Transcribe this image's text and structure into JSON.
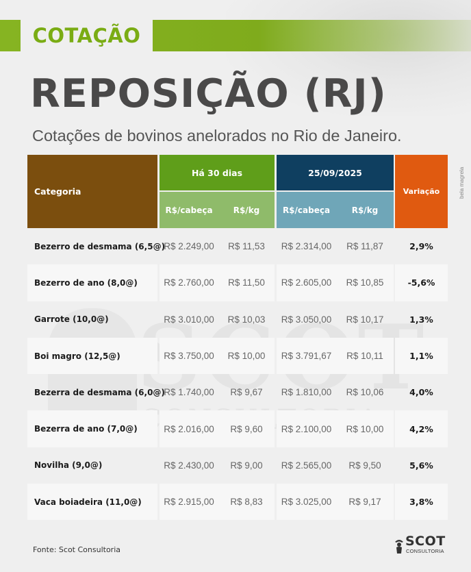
{
  "badge": "COTAÇÃO",
  "title": "REPOSIÇÃO (RJ)",
  "subtitle": "Cotações de bovinos anelorados no Rio de Janeiro.",
  "photo_credit": "bela magrela",
  "table": {
    "header": {
      "category": "Categoria",
      "period1": "Há 30 dias",
      "period2": "25/09/2025",
      "variation": "Variação",
      "sub_head": "R$/cabeça",
      "sub_kg": "R$/kg"
    },
    "rows": [
      {
        "category": "Bezerro de desmama (6,5@)",
        "p1_head": "R$ 2.249,00",
        "p1_kg": "R$ 11,53",
        "p2_head": "R$ 2.314,00",
        "p2_kg": "R$ 11,87",
        "variation": "2,9%"
      },
      {
        "category": "Bezerro de ano (8,0@)",
        "p1_head": "R$ 2.760,00",
        "p1_kg": "R$ 11,50",
        "p2_head": "R$ 2.605,00",
        "p2_kg": "R$ 10,85",
        "variation": "-5,6%"
      },
      {
        "category": "Garrote (10,0@)",
        "p1_head": "R$ 3.010,00",
        "p1_kg": "R$ 10,03",
        "p2_head": "R$ 3.050,00",
        "p2_kg": "R$ 10,17",
        "variation": "1,3%"
      },
      {
        "category": "Boi magro (12,5@)",
        "p1_head": "R$ 3.750,00",
        "p1_kg": "R$ 10,00",
        "p2_head": "R$ 3.791,67",
        "p2_kg": "R$ 10,11",
        "variation": "1,1%"
      },
      {
        "category": "Bezerra de desmama (6,0@)",
        "p1_head": "R$ 1.740,00",
        "p1_kg": "R$ 9,67",
        "p2_head": "R$ 1.810,00",
        "p2_kg": "R$ 10,06",
        "variation": "4,0%"
      },
      {
        "category": "Bezerra de ano (7,0@)",
        "p1_head": "R$ 2.016,00",
        "p1_kg": "R$ 9,60",
        "p2_head": "R$ 2.100,00",
        "p2_kg": "R$ 10,00",
        "variation": "4,2%"
      },
      {
        "category": "Novilha (9,0@)",
        "p1_head": "R$ 2.430,00",
        "p1_kg": "R$ 9,00",
        "p2_head": "R$ 2.565,00",
        "p2_kg": "R$ 9,50",
        "variation": "5,6%"
      },
      {
        "category": "Vaca boiadeira (11,0@)",
        "p1_head": "R$ 2.915,00",
        "p1_kg": "R$ 8,83",
        "p2_head": "R$ 3.025,00",
        "p2_kg": "R$ 9,17",
        "variation": "3,8%"
      }
    ]
  },
  "source": "Fonte: Scot Consultoria",
  "logo": {
    "brand": "SCOT",
    "sub": "CONSULTORIA"
  },
  "watermark": {
    "text": "SCOT",
    "sub": "CONSULTORIA"
  },
  "colors": {
    "accent_green": "#7aac14",
    "category_brown": "#7b4e0e",
    "period1_green": "#5f9e1a",
    "period2_navy": "#0f3f60",
    "variation_orange": "#e05a10"
  }
}
